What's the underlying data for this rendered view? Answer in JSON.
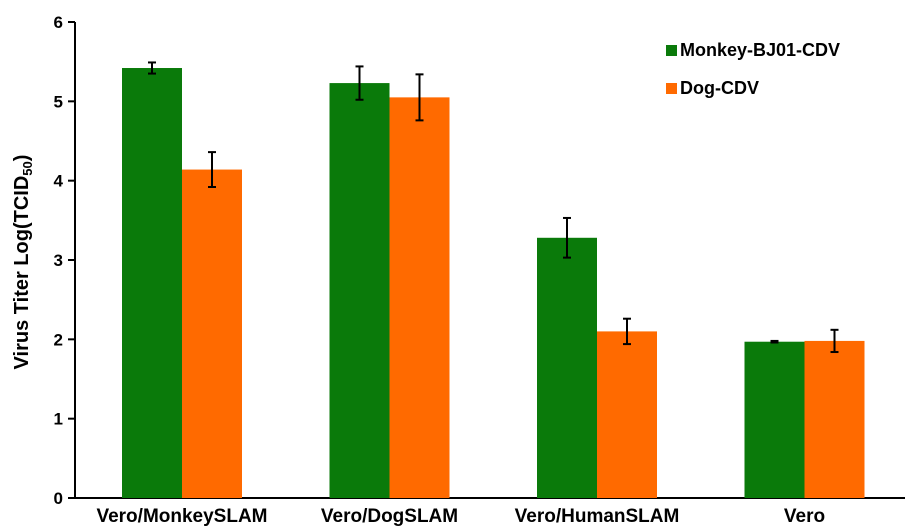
{
  "chart_data": {
    "type": "bar",
    "categories": [
      "Vero/MonkeySLAM",
      "Vero/DogSLAM",
      "Vero/HumanSLAM",
      "Vero"
    ],
    "series": [
      {
        "name": "Monkey-BJ01-CDV",
        "color": "#0a7a0a",
        "values": [
          5.42,
          5.23,
          3.28,
          1.97
        ],
        "errors": [
          0.07,
          0.21,
          0.25,
          0.01
        ]
      },
      {
        "name": "Dog-CDV",
        "color": "#ff6a00",
        "values": [
          4.14,
          5.05,
          2.1,
          1.98
        ],
        "errors": [
          0.22,
          0.29,
          0.16,
          0.14
        ]
      }
    ],
    "ylabel_main": "Virus Titer Log(TCID",
    "ylabel_sub": "50",
    "ylabel_close": ")",
    "ylim": [
      0,
      6
    ],
    "yticks": [
      "0",
      "1",
      "2",
      "3",
      "4",
      "5",
      "6"
    ],
    "legend_position": "top-right",
    "grid": false
  }
}
